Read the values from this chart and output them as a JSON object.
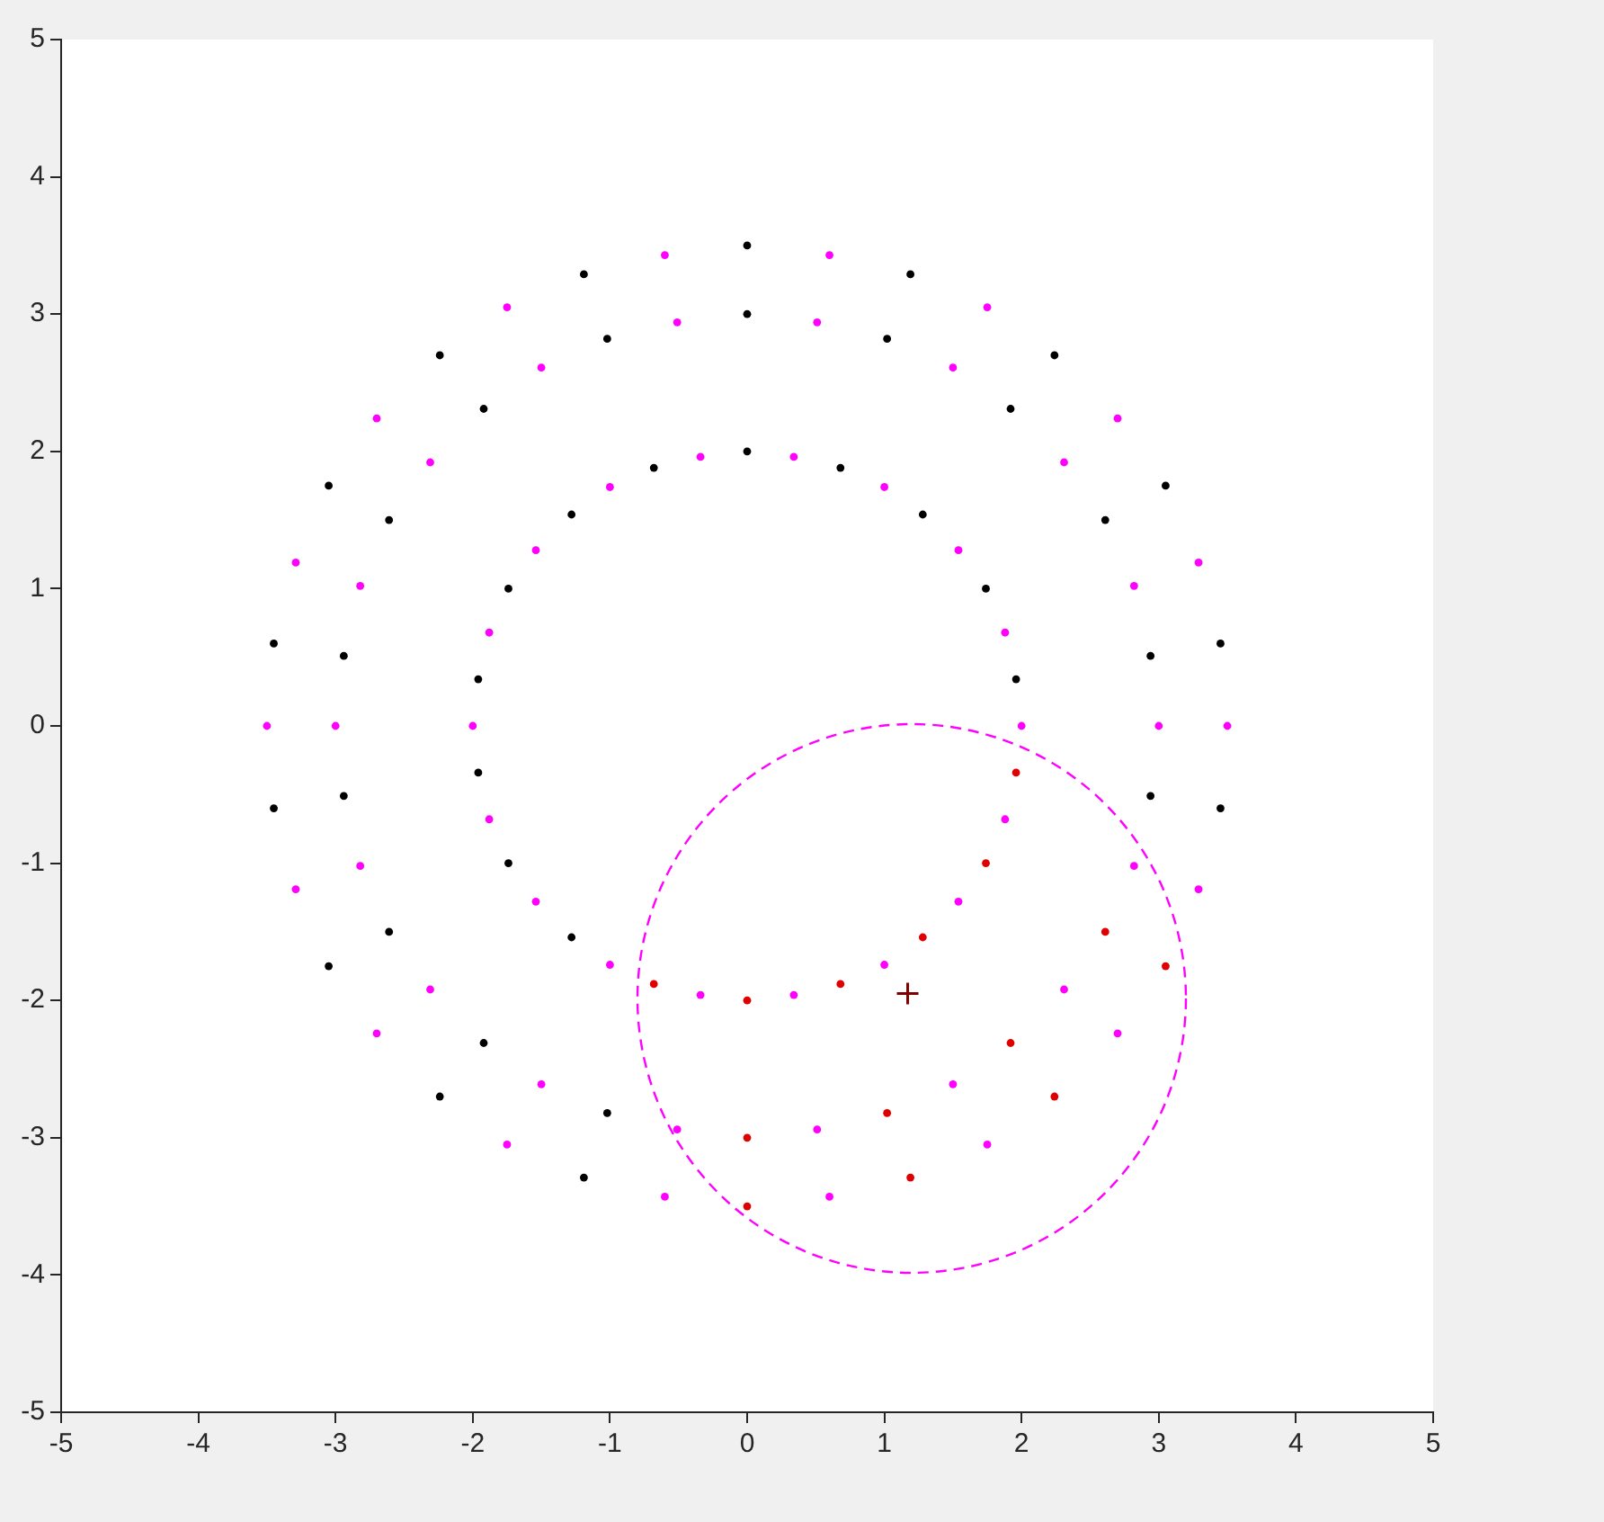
{
  "chart_data": {
    "type": "scatter",
    "xlim": [
      -5,
      5
    ],
    "ylim": [
      -5,
      5
    ],
    "xticks": [
      -5,
      -4,
      -3,
      -2,
      -1,
      0,
      1,
      2,
      3,
      4,
      5
    ],
    "yticks": [
      -5,
      -4,
      -3,
      -2,
      -1,
      0,
      1,
      2,
      3,
      4,
      5
    ],
    "grid": false,
    "legend": false,
    "series": [
      {
        "color": "#ff00ff",
        "marker": "circle",
        "x": [
          2,
          1.88,
          1.54,
          1,
          0.34,
          -0.34,
          -1,
          -1.54,
          -1.88,
          -2,
          -1.88,
          -1.54,
          -1,
          -0.34,
          0.34,
          1,
          1.54,
          1.88,
          3,
          2.82,
          2.31,
          1.5,
          0.51,
          -0.51,
          -1.5,
          -2.31,
          -2.82,
          -3,
          -2.82,
          -2.31,
          -1.5,
          -0.51,
          0.51,
          1.5,
          2.31,
          2.82,
          3.5,
          3.29,
          2.7,
          1.75,
          0.6,
          -0.6,
          -1.75,
          -2.7,
          -3.29,
          -3.5,
          -3.29,
          -2.7,
          -1.75,
          -0.6,
          0.6,
          1.75,
          2.7,
          3.29
        ],
        "values": [
          0,
          0.68,
          1.28,
          1.74,
          1.96,
          1.96,
          1.74,
          1.28,
          0.68,
          0,
          -0.68,
          -1.28,
          -1.74,
          -1.96,
          -1.96,
          -1.74,
          -1.28,
          -0.68,
          0,
          1.02,
          1.92,
          2.61,
          2.94,
          2.94,
          2.61,
          1.92,
          1.02,
          0,
          -1.02,
          -1.92,
          -2.61,
          -2.94,
          -2.94,
          -2.61,
          -1.92,
          -1.02,
          0,
          1.19,
          2.24,
          3.05,
          3.43,
          3.43,
          3.05,
          2.24,
          1.19,
          0,
          -1.19,
          -2.24,
          -3.05,
          -3.43,
          -3.43,
          -3.05,
          -2.24,
          -1.19
        ]
      },
      {
        "color": "#000000",
        "marker": "circle",
        "x": [
          1.96,
          1.74,
          1.28,
          0.68,
          0,
          -0.68,
          -1.28,
          -1.74,
          -1.96,
          -1.96,
          -1.74,
          -1.28,
          2.94,
          2.61,
          1.92,
          1.02,
          0,
          -1.02,
          -1.92,
          -2.61,
          -2.94,
          -2.94,
          -2.61,
          -1.92,
          -1.02,
          2.94,
          3.45,
          3.05,
          2.24,
          1.19,
          0,
          -1.19,
          -2.24,
          -3.05,
          -3.45,
          -3.45,
          -3.05,
          -2.24,
          -1.19,
          3.45
        ],
        "values": [
          0.34,
          1,
          1.54,
          1.88,
          2,
          1.88,
          1.54,
          1,
          0.34,
          -0.34,
          -1,
          -1.54,
          0.51,
          1.5,
          2.31,
          2.82,
          3,
          2.82,
          2.31,
          1.5,
          0.51,
          -0.51,
          -1.5,
          -2.31,
          -2.82,
          -0.51,
          0.6,
          1.75,
          2.7,
          3.29,
          3.5,
          3.29,
          2.7,
          1.75,
          0.6,
          -0.6,
          -1.75,
          -2.7,
          -3.29,
          -0.6
        ]
      },
      {
        "color": "#e00000",
        "marker": "circle",
        "x": [
          1.96,
          1.74,
          1.28,
          0.68,
          0,
          -0.68,
          2.61,
          1.92,
          1.02,
          0,
          3.05,
          2.24,
          1.19,
          0
        ],
        "values": [
          -0.34,
          -1,
          -1.54,
          -1.88,
          -2,
          -1.88,
          -1.5,
          -2.31,
          -2.82,
          -3,
          -1.75,
          -2.7,
          -3.29,
          -3.5
        ]
      },
      {
        "color": "#800000",
        "marker": "cross",
        "x": [
          1.17
        ],
        "values": [
          -1.95
        ]
      }
    ]
  }
}
